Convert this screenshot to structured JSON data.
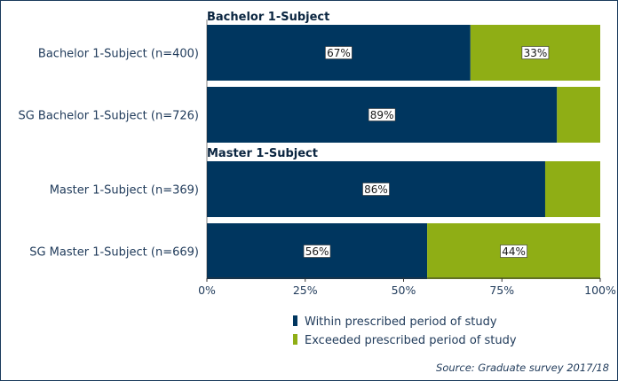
{
  "chart_data": {
    "type": "bar",
    "orientation": "horizontal",
    "stacked": true,
    "percent": true,
    "groups": [
      {
        "label": "Bachelor 1-Subject",
        "categories": [
          "Bachelor 1-Subject (n=400)",
          "SG Bachelor 1-Subject (n=726)"
        ]
      },
      {
        "label": "Master 1-Subject",
        "categories": [
          "Master 1-Subject (n=369)",
          "SG Master 1-Subject (n=669)"
        ]
      }
    ],
    "categories": [
      "Bachelor 1-Subject (n=400)",
      "SG Bachelor 1-Subject (n=726)",
      "Master 1-Subject (n=369)",
      "SG Master 1-Subject (n=669)"
    ],
    "series": [
      {
        "name": "Within prescribed period of study",
        "color": "#00365f",
        "values": [
          67,
          89,
          86,
          56
        ],
        "labels": [
          "67%",
          "89%",
          "86%",
          "56%"
        ]
      },
      {
        "name": "Exceeded prescribed period of study",
        "color": "#8fae15",
        "values": [
          33,
          11,
          14,
          44
        ],
        "labels": [
          "33%",
          "",
          "",
          "44%"
        ]
      }
    ],
    "xlim": [
      0,
      100
    ],
    "xticks": [
      "0%",
      "25%",
      "50%",
      "75%",
      "100%"
    ],
    "grid": false,
    "legend": "bottom-right",
    "source": "Source: Graduate survey 2017/18"
  }
}
